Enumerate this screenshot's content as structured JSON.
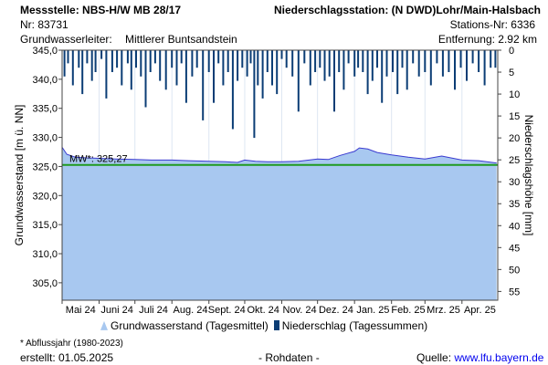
{
  "header": {
    "station": "Messstelle: NBS-H/W MB 28/17",
    "station_nr": "Nr: 83731",
    "aquifer_label": "Grundwasserleiter:",
    "aquifer": "Mittlerer Buntsandstein",
    "rain_station": "Niederschlagsstation: (N DWD)Lohr/Main-Halsbach",
    "rain_station_nr": "Stations-Nr: 6336",
    "distance": "Entfernung: 2.92 km"
  },
  "legend": {
    "groundwater": "Grundwasserstand (Tagesmittel)",
    "precipitation": "Niederschlag (Tagessummen)"
  },
  "footer": {
    "note": "* Abflussjahr (1980-2023)",
    "created": "erstellt:  01.05.2025",
    "raw": "- Rohdaten -",
    "source_label": "Quelle:",
    "source_link": "www.lfu.bayern.de"
  },
  "colors": {
    "groundwater_fill": "#a8c8f0",
    "groundwater_line": "#3a3ad0",
    "precipitation": "#0b3d75",
    "mean_line": "#1f9a1f"
  },
  "chart_data": {
    "type": "area",
    "ylabel_left": "Grundwasserstand [m ü. NN]",
    "ylabel_right": "Niederschlagshöhe [mm]",
    "ylim_left": [
      302,
      345
    ],
    "ylim_right": [
      0,
      57
    ],
    "yticks_left": [
      "345,0",
      "340,0",
      "335,0",
      "330,0",
      "325,0",
      "320,0",
      "315,0",
      "310,0",
      "305,0"
    ],
    "yticks_right": [
      "0",
      "5",
      "10",
      "15",
      "20",
      "25",
      "30",
      "35",
      "40",
      "45",
      "50",
      "55"
    ],
    "xticks": [
      "Mai 24",
      "Juni 24",
      "Juli 24",
      "Aug. 24",
      "Sept. 24",
      "Okt. 24",
      "Nov. 24",
      "Dez. 24",
      "Jan. 25",
      "Feb. 25",
      "Mrz. 25",
      "Apr. 25"
    ],
    "mean": {
      "label": "MW*: 325,27",
      "value": 325.27
    },
    "groundwater": {
      "x": [
        "2024-05-01",
        "2024-05-05",
        "2024-05-12",
        "2024-05-20",
        "2024-06-01",
        "2024-06-15",
        "2024-07-01",
        "2024-07-15",
        "2024-08-01",
        "2024-08-15",
        "2024-09-01",
        "2024-09-15",
        "2024-09-25",
        "2024-10-01",
        "2024-10-10",
        "2024-10-20",
        "2024-11-01",
        "2024-11-15",
        "2024-12-01",
        "2024-12-10",
        "2024-12-20",
        "2025-01-01",
        "2025-01-05",
        "2025-01-12",
        "2025-01-20",
        "2025-02-01",
        "2025-02-15",
        "2025-03-01",
        "2025-03-15",
        "2025-04-01",
        "2025-04-15",
        "2025-04-30"
      ],
      "y": [
        328.3,
        327.1,
        326.6,
        326.5,
        326.4,
        326.3,
        326.2,
        326.1,
        326.1,
        326.0,
        325.9,
        325.8,
        325.7,
        326.1,
        325.9,
        325.8,
        325.8,
        325.9,
        326.3,
        326.2,
        326.9,
        327.6,
        328.2,
        328.0,
        327.4,
        327.0,
        326.6,
        326.3,
        326.8,
        326.1,
        326.0,
        325.6
      ]
    },
    "precipitation": {
      "x": [
        "2024-05-03",
        "2024-05-06",
        "2024-05-10",
        "2024-05-15",
        "2024-05-18",
        "2024-05-22",
        "2024-05-26",
        "2024-05-29",
        "2024-06-03",
        "2024-06-07",
        "2024-06-12",
        "2024-06-16",
        "2024-06-20",
        "2024-06-25",
        "2024-06-28",
        "2024-07-02",
        "2024-07-06",
        "2024-07-10",
        "2024-07-14",
        "2024-07-18",
        "2024-07-22",
        "2024-07-27",
        "2024-08-01",
        "2024-08-05",
        "2024-08-09",
        "2024-08-13",
        "2024-08-18",
        "2024-08-22",
        "2024-08-27",
        "2024-09-01",
        "2024-09-05",
        "2024-09-09",
        "2024-09-13",
        "2024-09-17",
        "2024-09-21",
        "2024-09-25",
        "2024-09-29",
        "2024-10-03",
        "2024-10-06",
        "2024-10-09",
        "2024-10-12",
        "2024-10-16",
        "2024-10-20",
        "2024-10-24",
        "2024-10-28",
        "2024-11-01",
        "2024-11-05",
        "2024-11-10",
        "2024-11-15",
        "2024-11-20",
        "2024-11-25",
        "2024-11-29",
        "2024-12-03",
        "2024-12-07",
        "2024-12-11",
        "2024-12-15",
        "2024-12-19",
        "2024-12-23",
        "2024-12-27",
        "2025-01-01",
        "2025-01-04",
        "2025-01-08",
        "2025-01-12",
        "2025-01-16",
        "2025-01-20",
        "2025-01-24",
        "2025-01-28",
        "2025-02-02",
        "2025-02-06",
        "2025-02-10",
        "2025-02-14",
        "2025-02-19",
        "2025-02-24",
        "2025-03-01",
        "2025-03-06",
        "2025-03-11",
        "2025-03-16",
        "2025-03-21",
        "2025-03-26",
        "2025-03-31",
        "2025-04-05",
        "2025-04-10",
        "2025-04-15",
        "2025-04-20",
        "2025-04-25",
        "2025-04-29"
      ],
      "y": [
        6,
        3,
        8,
        4,
        10,
        3,
        7,
        5,
        2,
        11,
        5,
        4,
        8,
        3,
        9,
        4,
        6,
        13,
        5,
        3,
        7,
        9,
        4,
        8,
        3,
        12,
        6,
        4,
        16,
        5,
        12,
        3,
        8,
        5,
        18,
        7,
        4,
        6,
        3,
        20,
        8,
        11,
        5,
        8,
        10,
        2,
        4,
        6,
        14,
        3,
        8,
        5,
        4,
        7,
        6,
        14,
        5,
        9,
        3,
        6,
        4,
        5,
        10,
        7,
        4,
        12,
        6,
        5,
        10,
        4,
        9,
        3,
        6,
        5,
        8,
        3,
        6,
        5,
        9,
        4,
        7,
        3,
        5,
        8,
        4,
        4
      ]
    }
  }
}
